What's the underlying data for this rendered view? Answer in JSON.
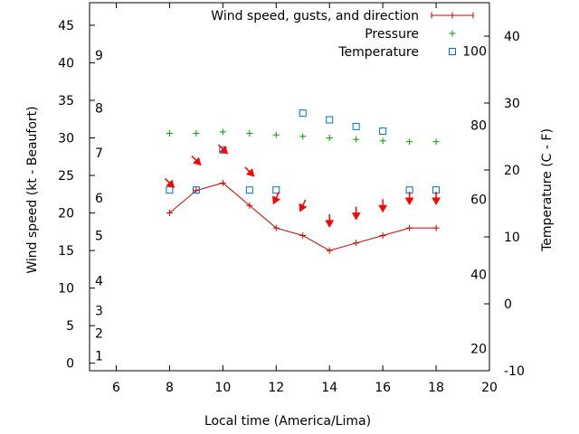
{
  "chart_data": {
    "type": "line",
    "xlabel": "Local time (America/Lima)",
    "ylabel": "Wind speed (kt - Beaufort)",
    "y2label": "Temperature (C - F)",
    "xlim": [
      5,
      20
    ],
    "ylim": [
      -1,
      48
    ],
    "y2lim": [
      -10,
      45
    ],
    "x_ticks": [
      6,
      8,
      10,
      12,
      14,
      16,
      18,
      20
    ],
    "y_ticks": [
      0,
      5,
      10,
      15,
      20,
      25,
      30,
      35,
      40,
      45
    ],
    "y2_ticks": [
      -10,
      0,
      10,
      20,
      30,
      40
    ],
    "beaufort_labels": [
      {
        "label": "1",
        "y": 1
      },
      {
        "label": "2",
        "y": 4
      },
      {
        "label": "3",
        "y": 7
      },
      {
        "label": "4",
        "y": 11
      },
      {
        "label": "5",
        "y": 17
      },
      {
        "label": "6",
        "y": 22
      },
      {
        "label": "7",
        "y": 28
      },
      {
        "label": "8",
        "y": 34
      },
      {
        "label": "9",
        "y": 41
      }
    ],
    "fahrenheit_labels": [
      {
        "label": "20",
        "y2": -6.7
      },
      {
        "label": "40",
        "y2": 4.4
      },
      {
        "label": "60",
        "y2": 15.6
      },
      {
        "label": "80",
        "y2": 26.7
      },
      {
        "label": "100",
        "y2": 37.8
      }
    ],
    "legend_position": "top-right",
    "series": [
      {
        "name": "Wind speed, gusts, and direction",
        "color": "#cc0000",
        "x": [
          8,
          9,
          10,
          11,
          12,
          13,
          14,
          15,
          16,
          17,
          18
        ],
        "values": [
          20,
          23,
          24,
          21,
          18,
          17,
          15,
          16,
          17,
          18,
          18
        ]
      },
      {
        "name": "Pressure",
        "color": "#00a000",
        "axis": "y",
        "x": [
          8,
          9,
          10,
          11,
          12,
          13,
          14,
          15,
          16,
          17,
          18
        ],
        "values": [
          30.6,
          30.6,
          30.8,
          30.6,
          30.4,
          30.2,
          30.0,
          29.8,
          29.6,
          29.5,
          29.5
        ]
      },
      {
        "name": "Temperature",
        "color": "#0070c0",
        "axis": "y2",
        "x": [
          8,
          9,
          10,
          11,
          12,
          13,
          14,
          15,
          16,
          17,
          18
        ],
        "values": [
          17,
          17,
          23,
          17,
          17,
          28.5,
          27.5,
          26.5,
          25.8,
          17,
          17
        ]
      }
    ],
    "wind_direction": {
      "color": "#ff0000",
      "x": [
        8,
        9,
        10,
        11,
        12,
        13,
        14,
        15,
        16,
        17,
        18
      ],
      "y": [
        24,
        27,
        28.5,
        25.5,
        22,
        21,
        19,
        20,
        21,
        22,
        22
      ],
      "direction_deg": [
        135,
        135,
        135,
        135,
        205,
        205,
        180,
        180,
        180,
        180,
        180
      ]
    }
  }
}
